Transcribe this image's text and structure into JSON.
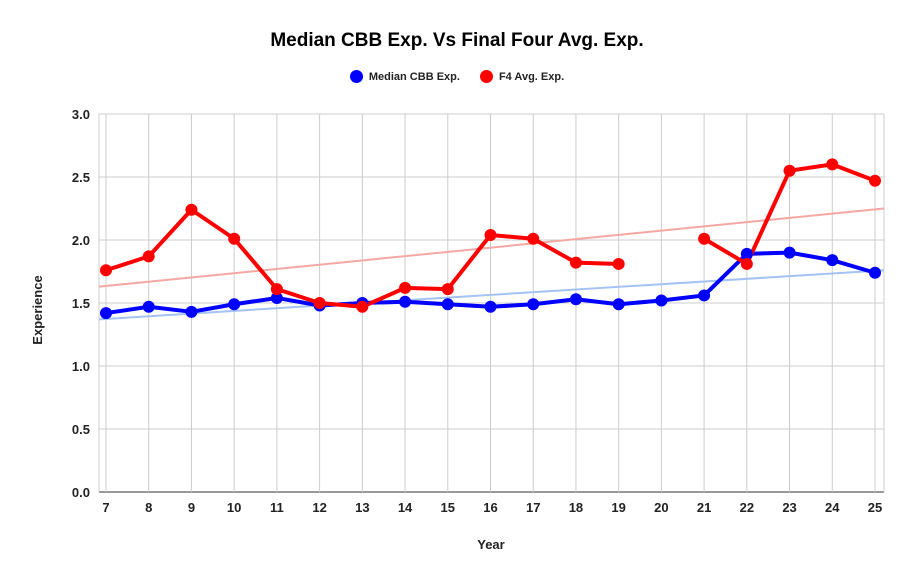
{
  "chart_data": {
    "type": "line",
    "title": "Median CBB Exp. Vs Final Four Avg. Exp.",
    "xlabel": "Year",
    "ylabel": "Experience",
    "ylim": [
      0,
      3
    ],
    "yticks": [
      "0.0",
      "0.5",
      "1.0",
      "1.5",
      "2.0",
      "2.5",
      "3.0"
    ],
    "categories": [
      "7",
      "8",
      "9",
      "10",
      "11",
      "12",
      "13",
      "14",
      "15",
      "16",
      "17",
      "18",
      "19",
      "20",
      "21",
      "22",
      "23",
      "24",
      "25"
    ],
    "legend_position": "top-center",
    "grid": true,
    "series": [
      {
        "name": "Median CBB Exp.",
        "color": "#0000ff",
        "trend_color": "#a4c2f4",
        "values": [
          1.42,
          1.47,
          1.43,
          1.49,
          1.54,
          1.48,
          1.5,
          1.51,
          1.49,
          1.47,
          1.49,
          1.53,
          1.49,
          1.52,
          1.56,
          1.89,
          1.9,
          1.84,
          1.74
        ],
        "trendline": [
          1.37,
          1.76
        ]
      },
      {
        "name": "F4 Avg. Exp.",
        "color": "#ff0000",
        "trend_color": "#f4a7a3",
        "values": [
          1.76,
          1.87,
          2.24,
          2.01,
          1.61,
          1.5,
          1.47,
          1.62,
          1.61,
          2.04,
          2.01,
          1.82,
          1.81,
          null,
          2.01,
          1.81,
          2.55,
          2.6,
          2.47
        ],
        "trendline": [
          1.63,
          2.25
        ]
      }
    ]
  }
}
